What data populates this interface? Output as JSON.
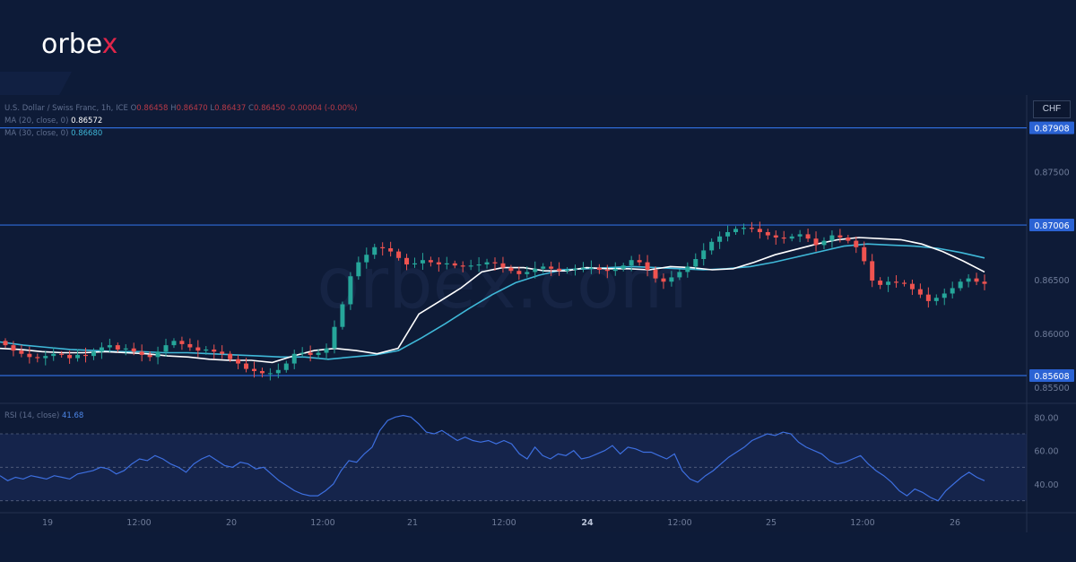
{
  "brand": {
    "logo_main": "orbe",
    "logo_x": "x",
    "watermark": "orbex.com"
  },
  "legend": {
    "symbol_line": "U.S. Dollar / Swiss Franc, 1h, ICE",
    "o_label": "O",
    "o_value": "0.86458",
    "h_label": "H",
    "h_value": "0.86470",
    "l_label": "L",
    "l_value": "0.86437",
    "c_label": "C",
    "c_value": "0.86450",
    "change": "-0.00004 (-0.00%)",
    "ma20_label": "MA (20, close, 0)",
    "ma20_value": "0.86572",
    "ma30_label": "MA (30, close, 0)",
    "ma30_value": "0.86680",
    "rsi_label": "RSI (14, close)",
    "rsi_value": "41.68"
  },
  "currency": "CHF",
  "colors": {
    "up": "#26a69a",
    "down": "#ef5350",
    "ma20": "#ffffff",
    "ma30": "#3fb8d8",
    "level": "#2e6bd8",
    "rsi": "#3d6fe0",
    "bg": "#0d1b38"
  },
  "chart_data": {
    "type": "candlestick",
    "price_ylim": [
      0.8545,
      0.8803
    ],
    "price_ticks": [
      "0.87500",
      "0.86500",
      "0.86000",
      "0.85500"
    ],
    "horizontal_levels": [
      {
        "label": "0.87908",
        "value": 0.87908
      },
      {
        "label": "0.87006",
        "value": 0.87006
      },
      {
        "label": "0.85608",
        "value": 0.85608
      }
    ],
    "x_labels": [
      "19",
      "12:00",
      "20",
      "12:00",
      "21",
      "12:00",
      "24",
      "12:00",
      "25",
      "12:00",
      "26"
    ],
    "close_path": [
      0.8589,
      0.8584,
      0.8581,
      0.8578,
      0.8577,
      0.8579,
      0.8581,
      0.858,
      0.8577,
      0.858,
      0.8579,
      0.8583,
      0.8587,
      0.8589,
      0.8585,
      0.8586,
      0.8583,
      0.858,
      0.8578,
      0.8583,
      0.8589,
      0.8593,
      0.859,
      0.8587,
      0.8584,
      0.8585,
      0.8583,
      0.8581,
      0.8576,
      0.8572,
      0.8567,
      0.8565,
      0.8563,
      0.8563,
      0.8566,
      0.8572,
      0.8581,
      0.8582,
      0.858,
      0.8582,
      0.8586,
      0.8606,
      0.8627,
      0.8653,
      0.8666,
      0.8673,
      0.868,
      0.8679,
      0.8676,
      0.867,
      0.8664,
      0.8665,
      0.8668,
      0.8666,
      0.8664,
      0.8665,
      0.8663,
      0.8662,
      0.8663,
      0.8664,
      0.8666,
      0.8665,
      0.8661,
      0.8658,
      0.8655,
      0.8657,
      0.866,
      0.8662,
      0.866,
      0.8658,
      0.8659,
      0.866,
      0.8661,
      0.8661,
      0.8659,
      0.8658,
      0.866,
      0.8663,
      0.8668,
      0.8666,
      0.8659,
      0.8651,
      0.8648,
      0.8652,
      0.8657,
      0.8662,
      0.8669,
      0.8677,
      0.8685,
      0.869,
      0.8694,
      0.8697,
      0.8698,
      0.8697,
      0.8694,
      0.8691,
      0.8689,
      0.8688,
      0.869,
      0.8692,
      0.8688,
      0.8682,
      0.8686,
      0.8691,
      0.8689,
      0.8686,
      0.868,
      0.8667,
      0.8649,
      0.8645,
      0.8648,
      0.8647,
      0.8646,
      0.8641,
      0.8636,
      0.863,
      0.8633,
      0.8637,
      0.8642,
      0.8648,
      0.8651,
      0.8648,
      0.8646
    ],
    "ma20": [
      0.8586,
      0.8585,
      0.8583,
      0.8582,
      0.8582,
      0.8583,
      0.8582,
      0.8581,
      0.8579,
      0.8578,
      0.8576,
      0.8575,
      0.8575,
      0.8573,
      0.8579,
      0.8584,
      0.8586,
      0.8584,
      0.8581,
      0.8586,
      0.8618,
      0.863,
      0.8642,
      0.8657,
      0.8661,
      0.8661,
      0.8658,
      0.8658,
      0.8661,
      0.866,
      0.866,
      0.8659,
      0.8662,
      0.8661,
      0.8659,
      0.866,
      0.8666,
      0.8673,
      0.8678,
      0.8683,
      0.8687,
      0.8689,
      0.8688,
      0.8687,
      0.8683,
      0.8676,
      0.8667,
      0.8657
    ],
    "ma30": [
      0.8592,
      0.8589,
      0.8587,
      0.8585,
      0.8584,
      0.8583,
      0.8583,
      0.8582,
      0.8582,
      0.8581,
      0.858,
      0.8579,
      0.8578,
      0.8578,
      0.8576,
      0.8578,
      0.858,
      0.8584,
      0.8596,
      0.8609,
      0.8623,
      0.8636,
      0.8647,
      0.8654,
      0.8659,
      0.866,
      0.8661,
      0.8662,
      0.8661,
      0.866,
      0.8659,
      0.866,
      0.8662,
      0.8666,
      0.8671,
      0.8676,
      0.8681,
      0.8683,
      0.8682,
      0.8681,
      0.8679,
      0.8675,
      0.867
    ],
    "rsi_ylim": [
      25,
      85
    ],
    "rsi_ticks": [
      "80.00",
      "60.00",
      "40.00"
    ],
    "rsi_band": [
      30,
      70
    ],
    "rsi_midline": 50,
    "rsi": [
      45,
      42,
      44,
      43,
      45,
      44,
      43,
      45,
      44,
      43,
      46,
      47,
      48,
      50,
      49,
      46,
      48,
      52,
      55,
      54,
      57,
      55,
      52,
      50,
      47,
      52,
      55,
      57,
      54,
      51,
      50,
      53,
      52,
      49,
      50,
      46,
      42,
      39,
      36,
      34,
      33,
      33,
      36,
      40,
      48,
      54,
      53,
      58,
      62,
      72,
      78,
      80,
      81,
      80,
      76,
      71,
      70,
      72,
      69,
      66,
      68,
      66,
      65,
      66,
      64,
      66,
      64,
      58,
      55,
      62,
      57,
      55,
      58,
      57,
      60,
      55,
      56,
      58,
      60,
      63,
      58,
      62,
      61,
      59,
      59,
      57,
      55,
      58,
      48,
      43,
      41,
      45,
      48,
      52,
      56,
      59,
      62,
      66,
      68,
      70,
      69,
      71,
      70,
      65,
      62,
      60,
      58,
      54,
      52,
      53,
      55,
      57,
      52,
      48,
      45,
      41,
      36,
      33,
      37,
      35,
      32,
      30,
      36,
      40,
      44,
      47,
      44,
      42
    ]
  }
}
